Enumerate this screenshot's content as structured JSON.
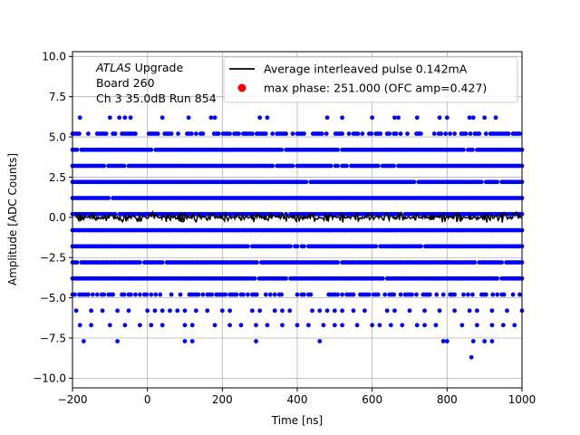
{
  "chart_data": {
    "type": "scatter",
    "xlabel": "Time [ns]",
    "ylabel": "Amplitude [ADC Counts]",
    "xlim": [
      -200,
      1000
    ],
    "ylim": [
      -10.6,
      10.3
    ],
    "grid": true,
    "legend_position": "top-right",
    "xticks": [
      -200,
      0,
      200,
      400,
      600,
      800,
      1000
    ],
    "xtick_labels": [
      "−200",
      "0",
      "200",
      "400",
      "600",
      "800",
      "1000"
    ],
    "yticks": [
      -10,
      -7.5,
      -5,
      -2.5,
      0,
      2.5,
      5,
      7.5,
      10
    ],
    "ytick_labels": [
      "−10.0",
      "−7.5",
      "−5.0",
      "−2.5",
      "0.0",
      "2.5",
      "5.0",
      "7.5",
      "10.0"
    ],
    "annotation": {
      "experiment": "ATLAS",
      "suffix": " Upgrade",
      "line2": " Board 260",
      "line3": " Ch 3 35.0dB  Run 854"
    },
    "series": [
      {
        "name": "Average interleaved pulse 0.142mA",
        "kind": "line",
        "color": "#000000",
        "baseline": 0.0,
        "noise_amplitude": 0.35,
        "x_range": [
          -190,
          1000
        ]
      },
      {
        "name": "max phase: 251.000 (OFC amp=0.427)",
        "kind": "scatter",
        "color": "#0000ff",
        "legend_color": "#ff0000",
        "dense_levels": [
          4.2,
          3.2,
          2.2,
          1.2,
          0.2,
          -0.8,
          -1.8,
          -2.8,
          -3.8
        ],
        "medium_levels": [
          5.2,
          -4.8
        ],
        "sparse_levels": [
          {
            "y": 6.2,
            "x": [
              -180,
              -100,
              -75,
              -60,
              -45,
              40,
              110,
              170,
              180,
              300,
              320,
              480,
              520,
              600,
              660,
              670,
              720,
              780,
              800,
              860,
              870,
              900,
              930
            ]
          },
          {
            "y": -5.8,
            "x": [
              -190,
              -150,
              -120,
              -80,
              -50,
              0,
              20,
              40,
              60,
              80,
              100,
              130,
              160,
              200,
              220,
              280,
              300,
              340,
              360,
              380,
              440,
              460,
              480,
              500,
              520,
              550,
              580,
              640,
              660,
              700,
              740,
              780,
              820,
              860,
              880,
              920,
              960,
              1000
            ]
          },
          {
            "y": -6.7,
            "x": [
              -180,
              -150,
              -100,
              -60,
              -20,
              10,
              40,
              100,
              120,
              180,
              220,
              250,
              290,
              320,
              360,
              400,
              430,
              470,
              500,
              520,
              560,
              600,
              620,
              650,
              680,
              720,
              740,
              770,
              840,
              880,
              920,
              950,
              980
            ]
          },
          {
            "y": -7.7,
            "x": [
              -170,
              -80,
              100,
              120,
              290,
              460,
              790,
              800,
              870,
              900,
              920
            ]
          },
          {
            "y": -8.7,
            "x": [
              865
            ]
          }
        ]
      }
    ]
  }
}
